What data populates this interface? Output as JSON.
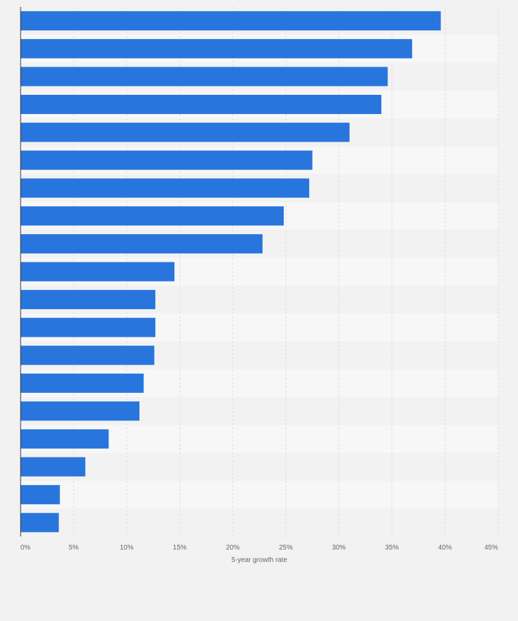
{
  "colors": {
    "bar": "#2876dd",
    "band_light": "#f7f7f7",
    "band_dark": "#f2f2f2",
    "grid": "#dcdcdc",
    "axis": "#333333",
    "tick_text": "#666666"
  },
  "chart_data": {
    "type": "bar",
    "orientation": "horizontal",
    "title": "",
    "xlabel": "5-year growth rate",
    "ylabel": "",
    "xlim": [
      0,
      45
    ],
    "x_ticks": [
      "0%",
      "5%",
      "10%",
      "15%",
      "20%",
      "25%",
      "30%",
      "35%",
      "40%",
      "45%"
    ],
    "grid": true,
    "values": [
      39.6,
      36.9,
      34.6,
      34.0,
      31.0,
      27.5,
      27.2,
      24.8,
      22.8,
      14.5,
      12.7,
      12.7,
      12.6,
      11.6,
      11.2,
      8.3,
      6.1,
      3.7,
      3.6
    ]
  }
}
